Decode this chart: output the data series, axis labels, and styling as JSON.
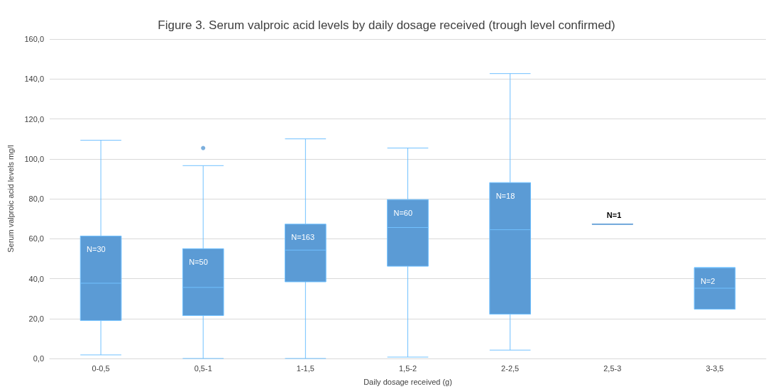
{
  "chart_data": {
    "type": "box",
    "title": "Figure 3. Serum valproic acid levels by daily dosage received (trough level confirmed)",
    "xlabel": "Daily dosage received (g)",
    "ylabel": "Serum valproic acid levels mg/l",
    "categories": [
      "0-0,5",
      "0,5-1",
      "1-1,5",
      "1,5-2",
      "2-2,5",
      "2,5-3",
      "3-3,5"
    ],
    "series": [
      {
        "color": "#5b9bd5",
        "boxes": [
          {
            "low": 1.8,
            "q1": 19.0,
            "median": 37.7,
            "q3": 61.3,
            "high": 109.3
          },
          {
            "low": 0,
            "q1": 21.5,
            "median": 35.6,
            "q3": 55.0,
            "high": 96.6,
            "outliers": [
              105.4
            ]
          },
          {
            "low": 0,
            "q1": 38.4,
            "median": 54.3,
            "q3": 67.3,
            "high": 110.0
          },
          {
            "low": 0.7,
            "q1": 46.2,
            "median": 65.6,
            "q3": 79.6,
            "high": 105.4
          },
          {
            "low": 4.2,
            "q1": 22.2,
            "median": 64.5,
            "q3": 88.1,
            "high": 142.7
          },
          {
            "low": 67.3,
            "q1": 67.3,
            "median": 67.3,
            "q3": 67.3,
            "high": 67.3
          },
          {
            "low": 24.7,
            "q1": 24.7,
            "median": 35.2,
            "q3": 45.5,
            "high": 45.5
          }
        ]
      }
    ],
    "annotations": [
      {
        "text": "N=30",
        "x": "0-0,5",
        "y": 61.3
      },
      {
        "text": "N=50",
        "x": "0,5-1",
        "y": 55.0
      },
      {
        "text": "N=163",
        "x": "1-1,5",
        "y": 67.3
      },
      {
        "text": "N=60",
        "x": "1,5-2",
        "y": 79.6
      },
      {
        "text": "N=18",
        "x": "2-2,5",
        "y": 88.1
      },
      {
        "text": "N=1",
        "x": "2,5-3",
        "y": 67.3
      },
      {
        "text": "N=2",
        "x": "3-3,5",
        "y": 45.5
      }
    ],
    "ylim": [
      0,
      160
    ],
    "yticks": [
      {
        "value": 0,
        "label": "0,0"
      },
      {
        "value": 20,
        "label": "20,0"
      },
      {
        "value": 40,
        "label": "40,0"
      },
      {
        "value": 60,
        "label": "60,0"
      },
      {
        "value": 80,
        "label": "80,0"
      },
      {
        "value": 100,
        "label": "100,0"
      },
      {
        "value": 120,
        "label": "120,0"
      },
      {
        "value": 140,
        "label": "140,0"
      },
      {
        "value": 160,
        "label": "160,0"
      }
    ],
    "grid": "y",
    "marker": "circle"
  }
}
